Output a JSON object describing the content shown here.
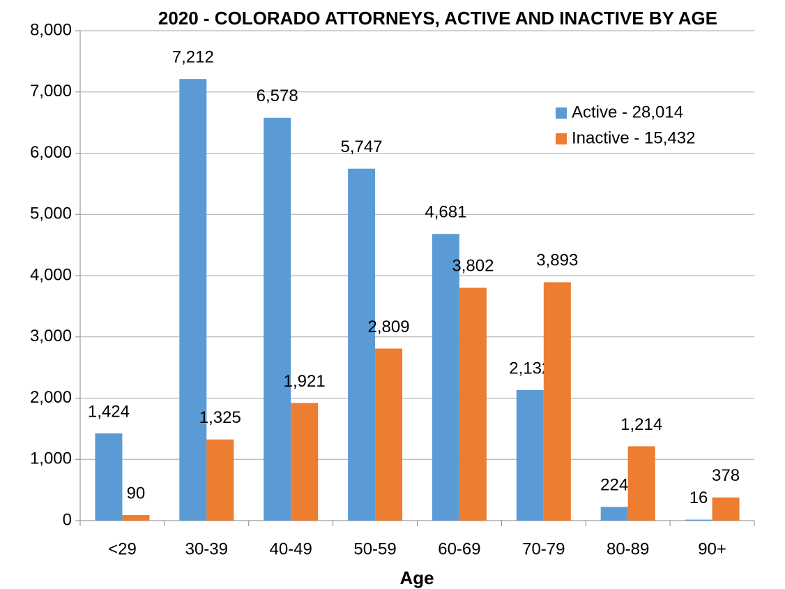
{
  "chart_data": {
    "type": "bar",
    "title": "2020 - COLORADO ATTORNEYS, ACTIVE AND INACTIVE BY AGE",
    "x_label": "Age",
    "categories": [
      "<29",
      "30-39",
      "40-49",
      "50-59",
      "60-69",
      "70-79",
      "80-89",
      "90+"
    ],
    "series": [
      {
        "name": "Active - 28,014",
        "color": "#5b9bd5",
        "values": [
          1424,
          7212,
          6578,
          5747,
          4681,
          2132,
          224,
          16
        ],
        "value_labels": [
          "1,424",
          "7,212",
          "6,578",
          "5,747",
          "4,681",
          "2,132",
          "224",
          "16"
        ]
      },
      {
        "name": "Inactive - 15,432",
        "color": "#ed7d31",
        "values": [
          90,
          1325,
          1921,
          2809,
          3802,
          3893,
          1214,
          378
        ],
        "value_labels": [
          "90",
          "1,325",
          "1,921",
          "2,809",
          "3,802",
          "3,893",
          "1,214",
          "378"
        ]
      }
    ],
    "ylim": [
      0,
      8000
    ],
    "yticks": [
      0,
      {
        "value": 1000,
        "label": "1,000"
      },
      {
        "value": 2000,
        "label": "2,000"
      },
      {
        "value": 3000,
        "label": "3,000"
      },
      {
        "value": 4000,
        "label": "4,000"
      },
      {
        "value": 5000,
        "label": "5,000"
      },
      {
        "value": 6000,
        "label": "6,000"
      },
      {
        "value": 7000,
        "label": "7,000"
      },
      {
        "value": 8000,
        "label": "8,000"
      }
    ],
    "grid": true,
    "legend": "upper right"
  }
}
